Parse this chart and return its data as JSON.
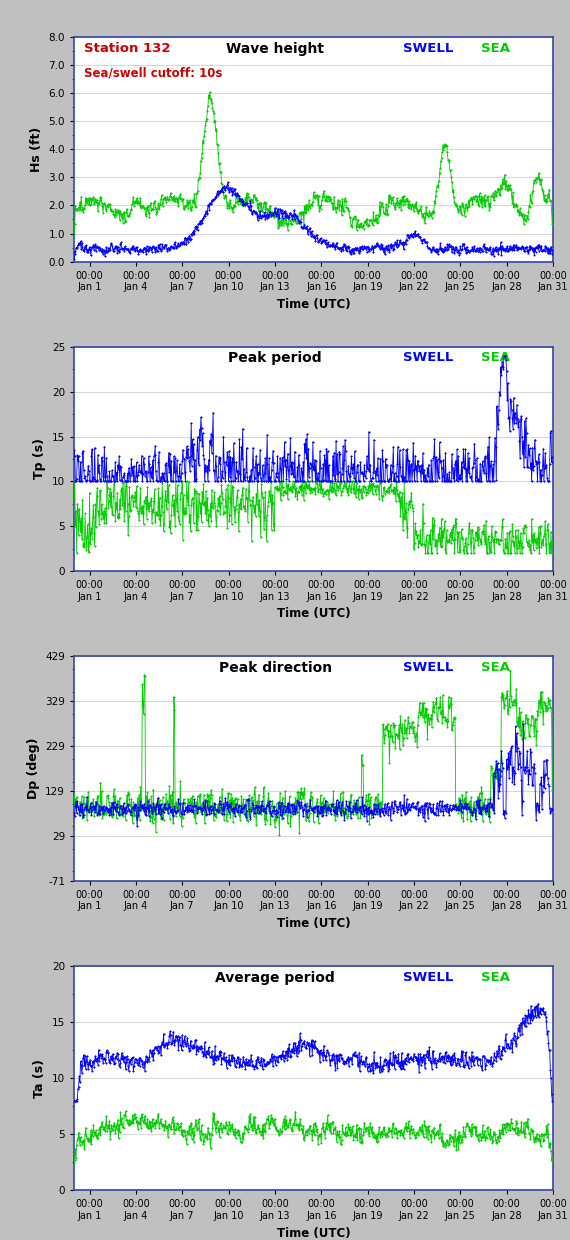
{
  "title_panel1": "Wave height",
  "title_panel2": "Peak period",
  "title_panel3": "Peak direction",
  "title_panel4": "Average period",
  "station_label": "Station 132",
  "cutoff_label": "Sea/swell cutoff: 10s",
  "swell_label": "SWELL",
  "sea_label": "SEA",
  "swell_color": "#0000FF",
  "sea_color": "#00CC00",
  "station_color": "#CC0000",
  "ylabel1": "Hs (ft)",
  "ylabel2": "Tp (s)",
  "ylabel3": "Dp (deg)",
  "ylabel4": "Ta (s)",
  "xlabel": "Time (UTC)",
  "ylim1": [
    0.0,
    8.0
  ],
  "ylim2": [
    0,
    25
  ],
  "ylim3": [
    -71,
    429
  ],
  "ylim4": [
    0,
    20
  ],
  "yticks1": [
    0.0,
    1.0,
    2.0,
    3.0,
    4.0,
    5.0,
    6.0,
    7.0,
    8.0
  ],
  "yticks2": [
    0,
    5,
    10,
    15,
    20,
    25
  ],
  "yticks3": [
    -71,
    29,
    129,
    229,
    329,
    429
  ],
  "yticks4": [
    0,
    5,
    10,
    15,
    20
  ],
  "bg_color": "#C0C0C0",
  "plot_bg_color": "#FFFFFF",
  "grid_color": "#D8D8D8",
  "border_color": "#3344AA",
  "n_points": 744,
  "figsize": [
    5.7,
    12.4
  ],
  "dpi": 100
}
